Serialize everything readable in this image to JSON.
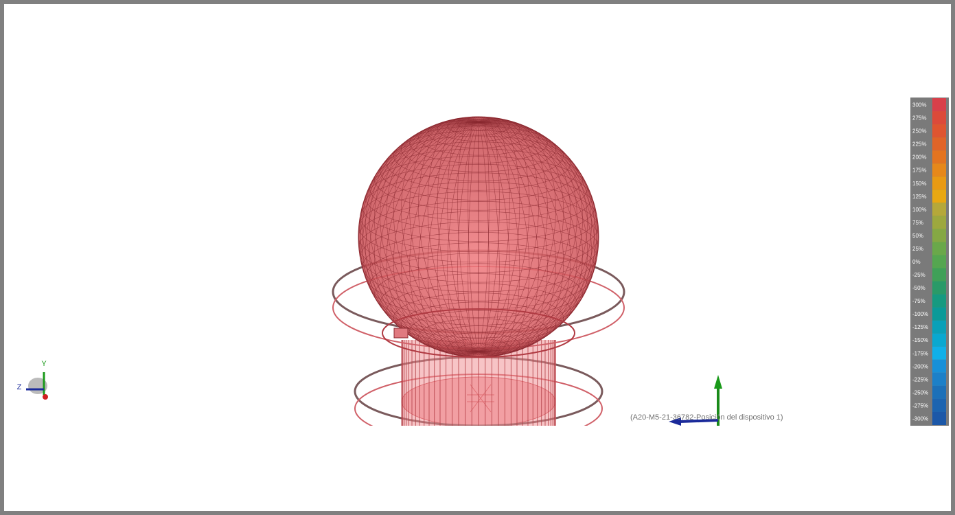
{
  "triad": {
    "y_label": "Y",
    "z_label": "Z"
  },
  "model_label": "(A20-M5-21-36782-Posición del dispositivo 1)",
  "legend": {
    "items": [
      {
        "label": "300%",
        "color": "#d9404a"
      },
      {
        "label": "275%",
        "color": "#dc4a3a"
      },
      {
        "label": "250%",
        "color": "#df5530"
      },
      {
        "label": "225%",
        "color": "#e06428"
      },
      {
        "label": "200%",
        "color": "#e37420"
      },
      {
        "label": "175%",
        "color": "#e6881a"
      },
      {
        "label": "150%",
        "color": "#e89a14"
      },
      {
        "label": "125%",
        "color": "#e8a812"
      },
      {
        "label": "100%",
        "color": "#b5a83a"
      },
      {
        "label": "75%",
        "color": "#9da83e"
      },
      {
        "label": "50%",
        "color": "#85a844"
      },
      {
        "label": "25%",
        "color": "#6aa84a"
      },
      {
        "label": "0%",
        "color": "#55a650"
      },
      {
        "label": "-25%",
        "color": "#40a058"
      },
      {
        "label": "-50%",
        "color": "#2a9a68"
      },
      {
        "label": "-75%",
        "color": "#169a80"
      },
      {
        "label": "-100%",
        "color": "#0a9a98"
      },
      {
        "label": "-125%",
        "color": "#0aa0b8"
      },
      {
        "label": "-150%",
        "color": "#0aa8d0"
      },
      {
        "label": "-175%",
        "color": "#10b0e8"
      },
      {
        "label": "-200%",
        "color": "#1890d8"
      },
      {
        "label": "-225%",
        "color": "#1c80c8"
      },
      {
        "label": "-250%",
        "color": "#1c70b8"
      },
      {
        "label": "-275%",
        "color": "#1c64b0"
      },
      {
        "label": "-300%",
        "color": "#1c58a8"
      }
    ]
  }
}
